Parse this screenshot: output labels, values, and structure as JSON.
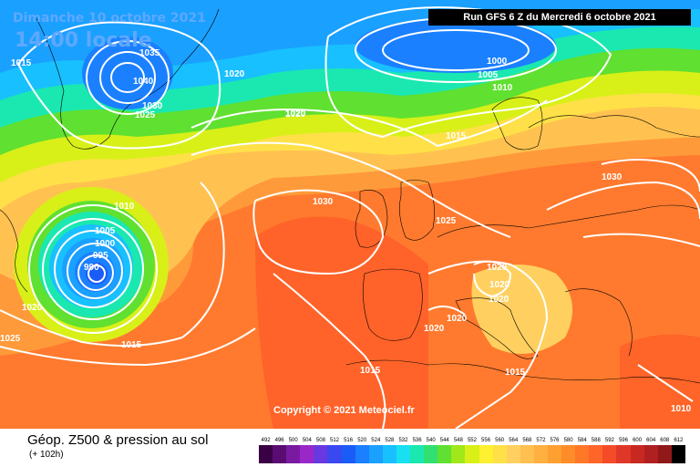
{
  "header": {
    "date": "Dimanche 10 octobre 2021",
    "local_time": "14:00 locale",
    "run_info": "Run GFS 6 Z du Mercredi 6 octobre 2021"
  },
  "copyright": "Copyright © 2021 Meteociel.fr",
  "footer": {
    "title": "Géop. Z500 & pression au sol",
    "lead_time": "(+ 102h)"
  },
  "isobar_labels": [
    "1035",
    "1040",
    "1030",
    "1025",
    "1020",
    "1015",
    "1020",
    "1000",
    "1005",
    "1010",
    "1015",
    "1020",
    "1030",
    "1030",
    "1025",
    "1010",
    "1005",
    "1000",
    "995",
    "990",
    "1020",
    "1025",
    "1015",
    "1020",
    "1020",
    "1020",
    "1020",
    "1020",
    "1015",
    "1015",
    "1010"
  ],
  "low_center_label": "990",
  "legend_scale": {
    "values": [
      "492",
      "496",
      "500",
      "504",
      "508",
      "512",
      "516",
      "520",
      "524",
      "528",
      "532",
      "536",
      "540",
      "544",
      "548",
      "552",
      "556",
      "560",
      "564",
      "568",
      "572",
      "576",
      "580",
      "584",
      "588",
      "592",
      "596",
      "600",
      "604",
      "608",
      "612"
    ],
    "colors": [
      "#3a0046",
      "#5a0c72",
      "#7a1aa0",
      "#9a28c8",
      "#6a38e0",
      "#3a48f0",
      "#1a5cf8",
      "#1a80ff",
      "#1aa0ff",
      "#18c0ff",
      "#18e0f0",
      "#1ae8b0",
      "#30e070",
      "#60e030",
      "#a0e81a",
      "#d8f018",
      "#fff030",
      "#ffe048",
      "#ffd060",
      "#ffc050",
      "#ffb040",
      "#ffa030",
      "#ff8c28",
      "#ff7828",
      "#ff6428",
      "#f44c28",
      "#e03828",
      "#c82820",
      "#b02020",
      "#901818",
      "#000000"
    ]
  }
}
